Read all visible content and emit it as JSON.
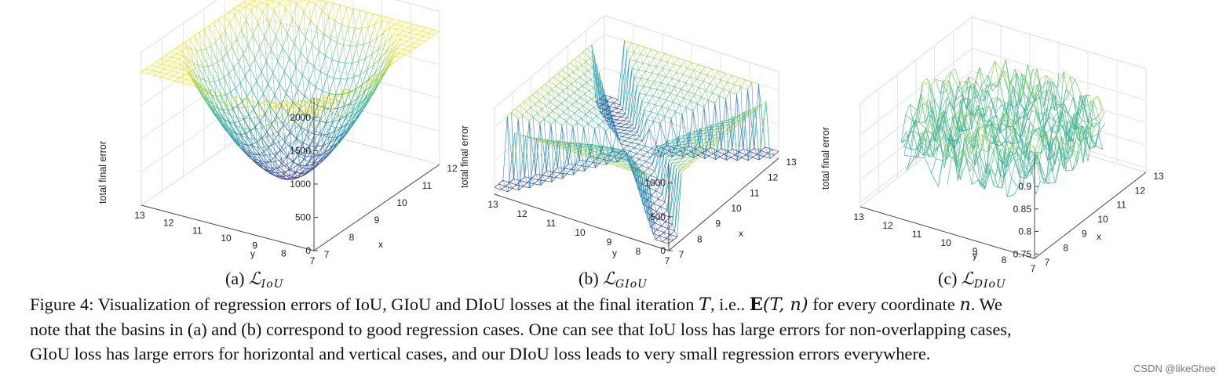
{
  "panels": [
    {
      "id": "iou",
      "zlabel": "total final error",
      "zticks": [
        "0",
        "500",
        "1000",
        "1500",
        "2000"
      ],
      "yticks": [
        "13",
        "12",
        "11",
        "10",
        "9",
        "8",
        "7"
      ],
      "xticks": [
        "7",
        "8",
        "9",
        "10",
        "11",
        "12"
      ],
      "ylabel": "y",
      "xlabel": "x",
      "caption_prefix": "(a)",
      "loss_symbol": "ℒ",
      "loss_sub": "IoU"
    },
    {
      "id": "giou",
      "zlabel": "total final error",
      "zticks": [
        "0",
        "500",
        "1000"
      ],
      "yticks": [
        "13",
        "12",
        "11",
        "10",
        "9",
        "8",
        "7"
      ],
      "xticks": [
        "7",
        "8",
        "9",
        "10",
        "11",
        "12",
        "13"
      ],
      "ylabel": "y",
      "xlabel": "x",
      "caption_prefix": "(b)",
      "loss_symbol": "ℒ",
      "loss_sub": "GIoU"
    },
    {
      "id": "diou",
      "zlabel": "total final error",
      "zticks": [
        "0.75",
        "0.8",
        "0.85",
        "0.9"
      ],
      "yticks": [
        "13",
        "12",
        "11",
        "10",
        "9",
        "8",
        "7"
      ],
      "xticks": [
        "7",
        "8",
        "9",
        "10",
        "11",
        "12",
        "13"
      ],
      "ylabel": "y",
      "xlabel": "x",
      "caption_prefix": "(c)",
      "loss_symbol": "ℒ",
      "loss_sub": "DIoU"
    }
  ],
  "caption": {
    "label": "Figure 4:",
    "l1a": "Visualization of regression errors of IoU, GIoU and DIoU losses at the final iteration",
    "T": "T",
    "l1b": ", i.e..",
    "E": "E",
    "Eargs": "(T, n)",
    "l1c": "for every coordinate",
    "n": "n",
    "l1d": ". We",
    "line2": "note that the basins in (a) and (b) correspond to good regression cases. One can see that IoU loss has large errors for non-overlapping cases,",
    "line3": "GIoU loss has large errors for horizontal and vertical cases, and our DIoU loss leads to very small regression errors everywhere."
  },
  "watermark": "CSDN @likeGhee",
  "colors": {
    "low": "#3a1f9a",
    "mid": "#2aa9b9",
    "high": "#f5e61c",
    "axis": "#444444",
    "grid": "#dddddd"
  }
}
